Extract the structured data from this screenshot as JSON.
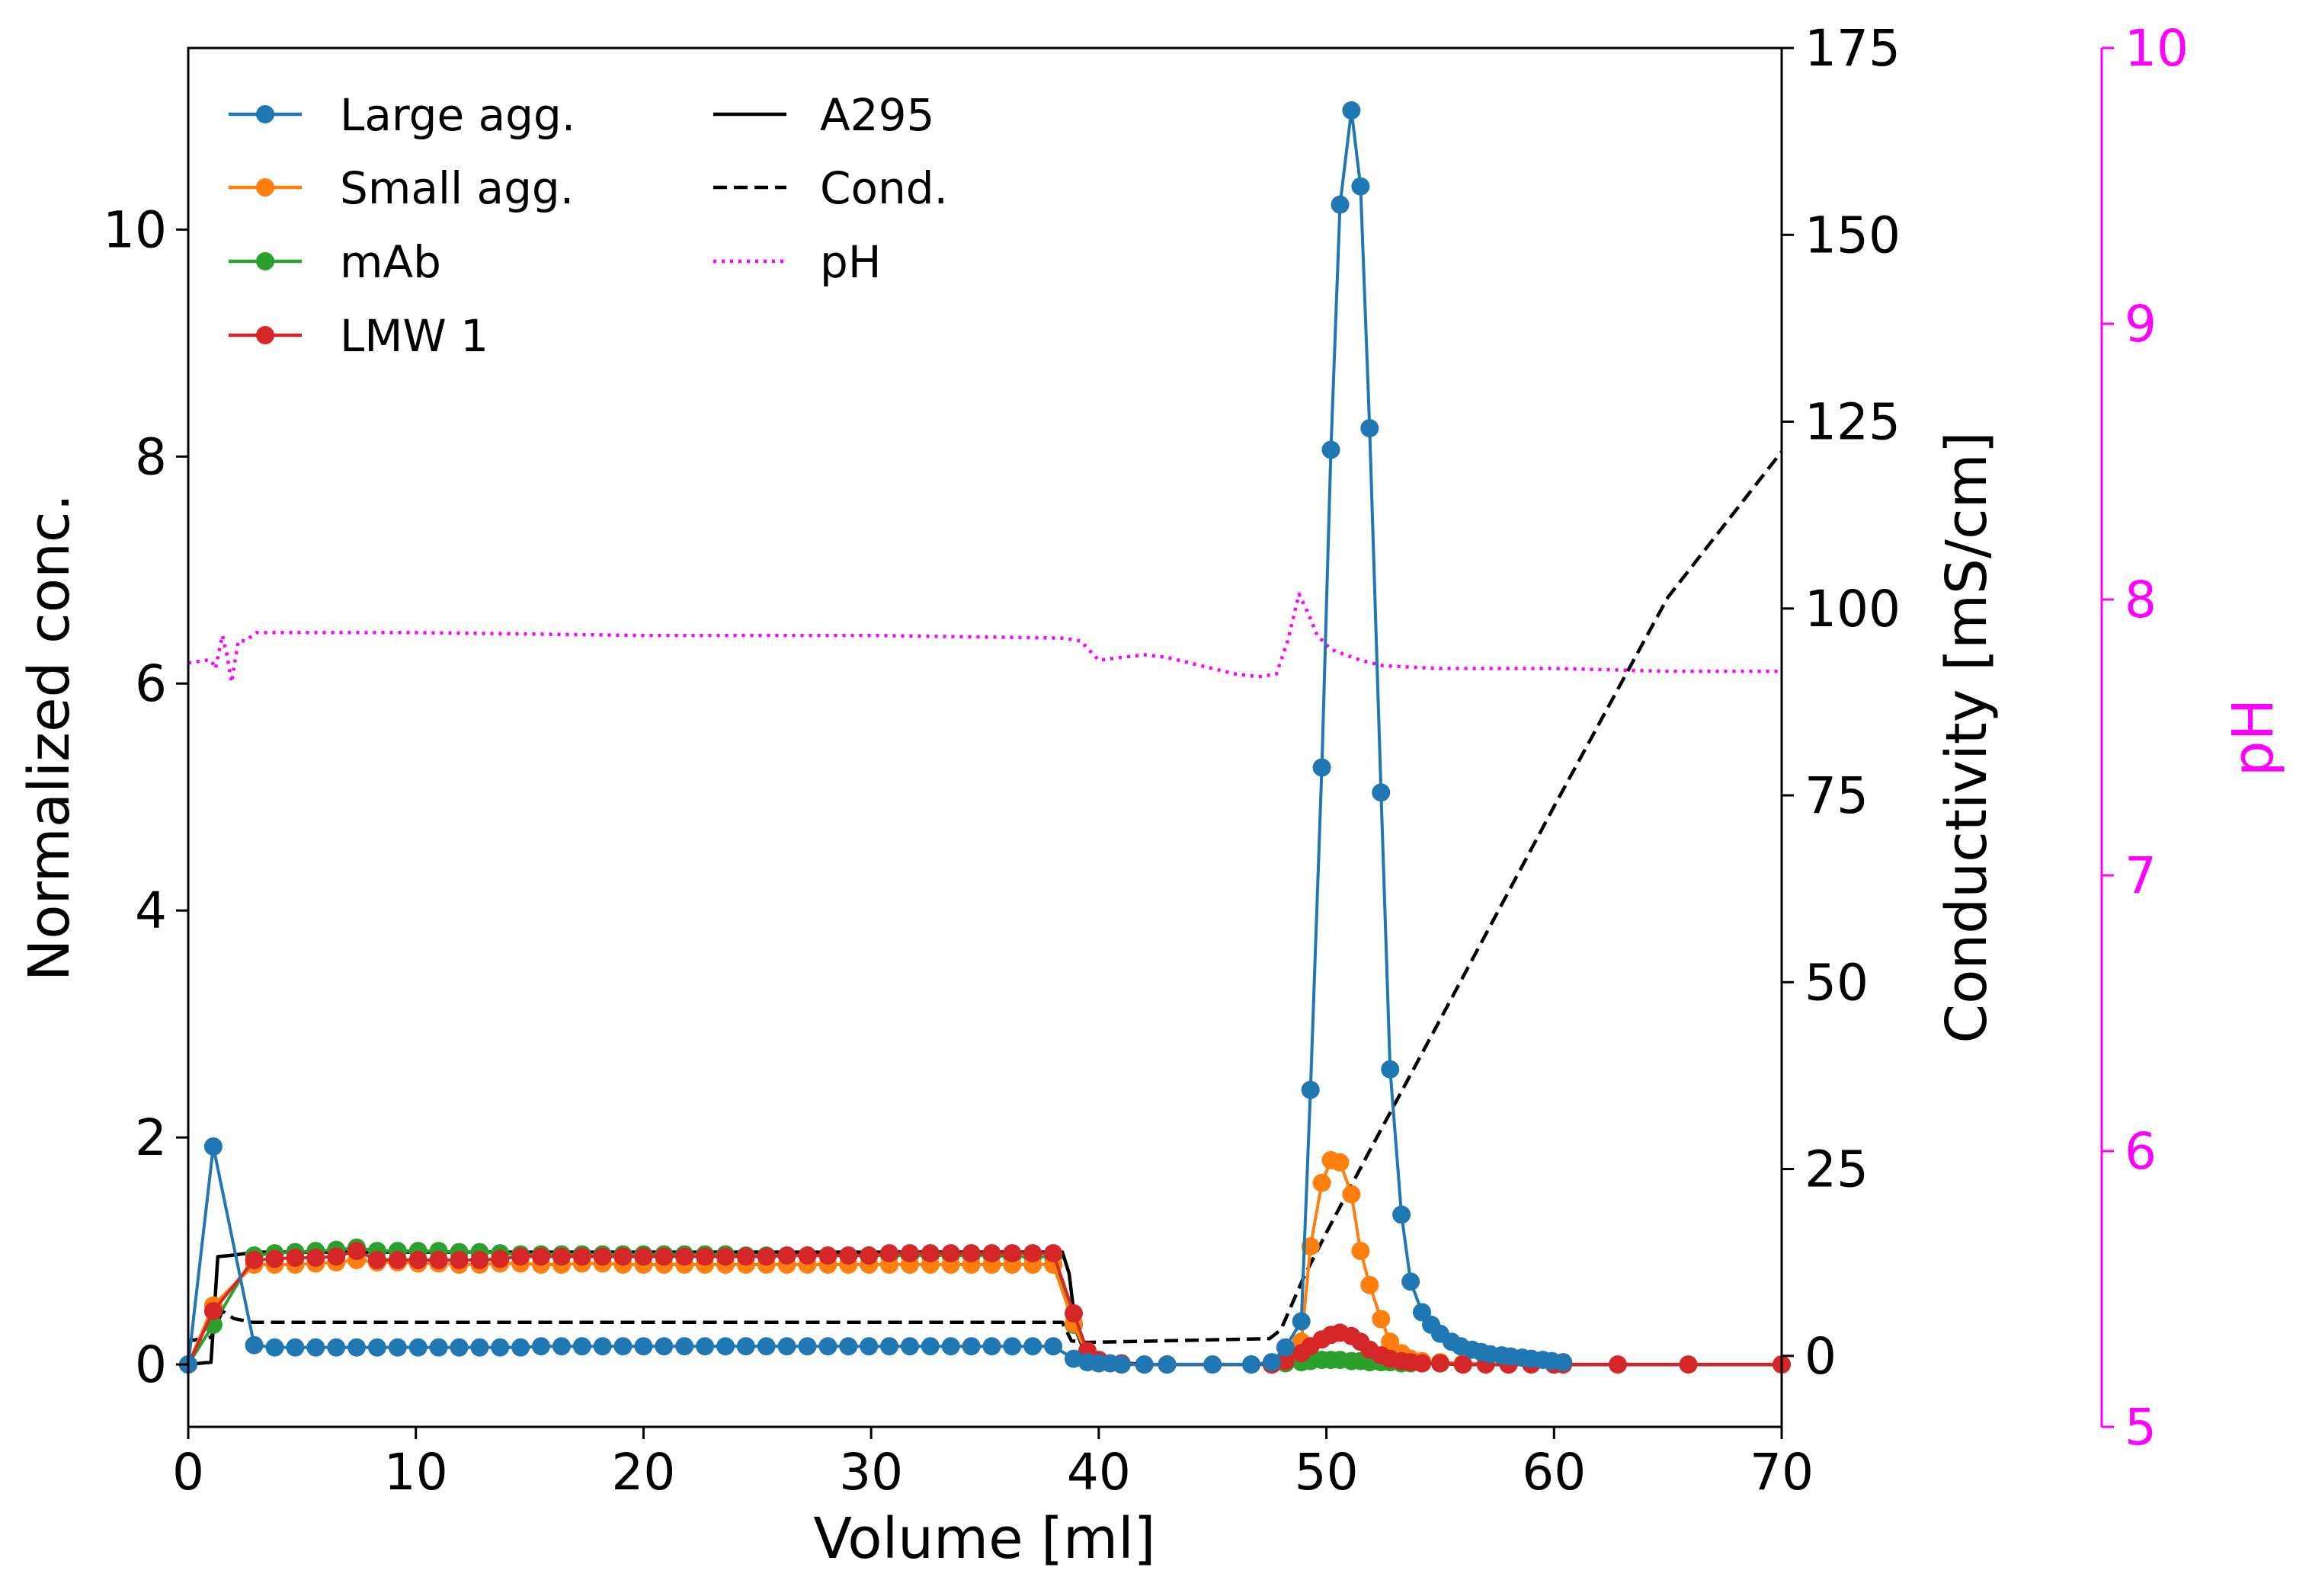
{
  "chart_data": {
    "type": "line",
    "title": "",
    "xlabel": "Volume [ml]",
    "ylabel": "Normalized conc.",
    "y2label": "Conductivity [mS/cm]",
    "y3label": "pH",
    "xlim": [
      0,
      70
    ],
    "ylim": [
      -0.55,
      11.6
    ],
    "y2lim": [
      -9.5,
      175
    ],
    "y3lim": [
      5,
      10
    ],
    "x_ticks": [
      0,
      10,
      20,
      30,
      40,
      50,
      60,
      70
    ],
    "y_ticks": [
      0,
      2,
      4,
      6,
      8,
      10
    ],
    "y2_ticks": [
      0,
      25,
      50,
      75,
      100,
      125,
      150,
      175
    ],
    "y3_ticks": [
      5,
      6,
      7,
      8,
      9,
      10
    ],
    "grid": false,
    "legend_placement": "top-left",
    "colors": {
      "large_agg": "#1f77b4",
      "small_agg": "#ff7f0e",
      "mab": "#2ca02c",
      "lmw1": "#d62728",
      "a295": "#000000",
      "cond": "#000000",
      "ph": "#ff00ff"
    },
    "series": [
      {
        "name": "Large agg.",
        "axis": "left",
        "style": "marker-line",
        "color": "#1f77b4",
        "x": [
          0,
          1.1,
          2.9,
          3.8,
          4.7,
          5.6,
          6.5,
          7.4,
          8.3,
          9.2,
          10.1,
          11.0,
          11.9,
          12.8,
          13.7,
          14.6,
          15.5,
          16.4,
          17.3,
          18.2,
          19.1,
          20.0,
          20.9,
          21.8,
          22.7,
          23.6,
          24.5,
          25.4,
          26.3,
          27.2,
          28.1,
          29.0,
          29.9,
          30.8,
          31.7,
          32.6,
          33.5,
          34.4,
          35.3,
          36.2,
          37.1,
          38.0,
          38.9,
          39.5,
          40.0,
          40.5,
          41.0,
          42.0,
          43.0,
          45.0,
          46.7,
          47.6,
          48.2,
          48.9,
          49.3,
          49.8,
          50.2,
          50.6,
          51.1,
          51.5,
          51.9,
          52.4,
          52.8,
          53.3,
          53.7,
          54.2,
          54.6,
          55.0,
          55.5,
          55.9,
          56.4,
          56.8,
          57.2,
          57.7,
          58.1,
          58.6,
          59.0,
          59.5,
          59.9,
          60.4
        ],
        "y": [
          0.0,
          1.92,
          0.17,
          0.15,
          0.15,
          0.15,
          0.15,
          0.15,
          0.15,
          0.15,
          0.15,
          0.15,
          0.15,
          0.15,
          0.15,
          0.15,
          0.16,
          0.16,
          0.16,
          0.16,
          0.16,
          0.16,
          0.16,
          0.16,
          0.16,
          0.16,
          0.16,
          0.16,
          0.16,
          0.16,
          0.16,
          0.16,
          0.16,
          0.16,
          0.16,
          0.16,
          0.16,
          0.16,
          0.16,
          0.16,
          0.16,
          0.16,
          0.05,
          0.02,
          0.01,
          0.01,
          0.0,
          0.0,
          0.0,
          0.0,
          0.0,
          0.02,
          0.15,
          0.38,
          2.42,
          5.26,
          8.06,
          10.22,
          11.05,
          10.38,
          8.25,
          5.04,
          2.6,
          1.32,
          0.73,
          0.46,
          0.35,
          0.27,
          0.2,
          0.16,
          0.13,
          0.11,
          0.09,
          0.08,
          0.07,
          0.06,
          0.05,
          0.04,
          0.03,
          0.02
        ]
      },
      {
        "name": "Small agg.",
        "axis": "left",
        "style": "marker-line",
        "color": "#ff7f0e",
        "x": [
          0,
          1.1,
          2.9,
          3.8,
          4.7,
          5.6,
          6.5,
          7.4,
          8.3,
          9.2,
          10.1,
          11.0,
          11.9,
          12.8,
          13.7,
          14.6,
          15.5,
          16.4,
          17.3,
          18.2,
          19.1,
          20.0,
          20.9,
          21.8,
          22.7,
          23.6,
          24.5,
          25.4,
          26.3,
          27.2,
          28.1,
          29.0,
          29.9,
          30.8,
          31.7,
          32.6,
          33.5,
          34.4,
          35.3,
          36.2,
          37.1,
          38.0,
          38.9,
          39.5,
          40.0,
          41.0,
          43.0,
          47.6,
          48.2,
          48.9,
          49.3,
          49.8,
          50.2,
          50.6,
          51.1,
          51.5,
          51.9,
          52.4,
          52.8,
          53.3,
          53.7,
          54.2,
          55.0,
          56.0,
          58.0,
          60.0
        ],
        "y": [
          0.0,
          0.52,
          0.88,
          0.88,
          0.88,
          0.89,
          0.9,
          0.92,
          0.9,
          0.9,
          0.89,
          0.89,
          0.88,
          0.88,
          0.89,
          0.89,
          0.88,
          0.88,
          0.89,
          0.89,
          0.88,
          0.88,
          0.88,
          0.88,
          0.88,
          0.88,
          0.88,
          0.88,
          0.88,
          0.88,
          0.88,
          0.88,
          0.88,
          0.88,
          0.88,
          0.88,
          0.88,
          0.88,
          0.88,
          0.88,
          0.88,
          0.88,
          0.36,
          0.08,
          0.02,
          0.0,
          0.0,
          0.0,
          0.03,
          0.2,
          1.04,
          1.6,
          1.8,
          1.78,
          1.5,
          1.0,
          0.7,
          0.4,
          0.2,
          0.1,
          0.05,
          0.03,
          0.02,
          0.01,
          0.0,
          0.0
        ]
      },
      {
        "name": "mAb",
        "axis": "left",
        "style": "marker-line",
        "color": "#2ca02c",
        "x": [
          0,
          1.1,
          2.9,
          3.8,
          4.7,
          5.6,
          6.5,
          7.4,
          8.3,
          9.2,
          10.1,
          11.0,
          11.9,
          12.8,
          13.7,
          14.6,
          15.5,
          16.4,
          17.3,
          18.2,
          19.1,
          20.0,
          20.9,
          21.8,
          22.7,
          23.6,
          24.5,
          25.4,
          26.3,
          27.2,
          28.1,
          29.0,
          29.9,
          30.8,
          31.7,
          32.6,
          33.5,
          34.4,
          35.3,
          36.2,
          37.1,
          38.0,
          38.9,
          39.5,
          40.0,
          41.0,
          43.0,
          47.6,
          48.2,
          48.9,
          49.3,
          49.8,
          50.2,
          50.6,
          51.1,
          51.5,
          51.9,
          52.4,
          52.8,
          53.3,
          53.7,
          54.2,
          55.0,
          56.0,
          58.0,
          60.0
        ],
        "y": [
          0.0,
          0.35,
          0.96,
          0.98,
          0.99,
          1.0,
          1.01,
          1.03,
          1.0,
          1.0,
          1.0,
          1.0,
          0.99,
          0.99,
          0.98,
          0.97,
          0.97,
          0.97,
          0.97,
          0.97,
          0.97,
          0.97,
          0.97,
          0.97,
          0.97,
          0.97,
          0.96,
          0.96,
          0.96,
          0.96,
          0.96,
          0.96,
          0.96,
          0.96,
          0.96,
          0.96,
          0.96,
          0.96,
          0.96,
          0.95,
          0.95,
          0.95,
          0.35,
          0.08,
          0.02,
          0.0,
          0.0,
          0.0,
          0.01,
          0.02,
          0.03,
          0.04,
          0.04,
          0.04,
          0.03,
          0.03,
          0.02,
          0.02,
          0.02,
          0.01,
          0.01,
          0.01,
          0.01,
          0.0,
          0.0,
          0.0
        ]
      },
      {
        "name": "LMW 1",
        "axis": "left",
        "style": "marker-line",
        "color": "#d62728",
        "x": [
          0,
          1.1,
          2.9,
          3.8,
          4.7,
          5.6,
          6.5,
          7.4,
          8.3,
          9.2,
          10.1,
          11.0,
          11.9,
          12.8,
          13.7,
          14.6,
          15.5,
          16.4,
          17.3,
          18.2,
          19.1,
          20.0,
          20.9,
          21.8,
          22.7,
          23.6,
          24.5,
          25.4,
          26.3,
          27.2,
          28.1,
          29.0,
          29.9,
          30.8,
          31.7,
          32.6,
          33.5,
          34.4,
          35.3,
          36.2,
          37.1,
          38.0,
          38.9,
          39.5,
          40.0,
          41.0,
          42.0,
          43.0,
          45.0,
          46.7,
          47.6,
          48.2,
          48.9,
          49.3,
          49.8,
          50.2,
          50.6,
          51.1,
          51.5,
          51.9,
          52.4,
          52.8,
          53.3,
          53.7,
          54.2,
          55.0,
          56.0,
          57.0,
          58.0,
          59.0,
          60.0,
          60.4,
          62.8,
          65.9,
          70.0
        ],
        "y": [
          0.0,
          0.47,
          0.92,
          0.93,
          0.94,
          0.94,
          0.95,
          1.0,
          0.92,
          0.92,
          0.92,
          0.92,
          0.92,
          0.92,
          0.93,
          0.95,
          0.95,
          0.95,
          0.95,
          0.95,
          0.95,
          0.95,
          0.95,
          0.95,
          0.95,
          0.95,
          0.95,
          0.95,
          0.96,
          0.96,
          0.96,
          0.96,
          0.96,
          0.98,
          0.98,
          0.98,
          0.98,
          0.98,
          0.98,
          0.98,
          0.98,
          0.98,
          0.45,
          0.12,
          0.04,
          0.01,
          0.0,
          0.0,
          0.0,
          0.0,
          0.0,
          0.03,
          0.1,
          0.16,
          0.22,
          0.26,
          0.28,
          0.25,
          0.2,
          0.13,
          0.08,
          0.05,
          0.03,
          0.02,
          0.01,
          0.01,
          0.0,
          0.0,
          0.0,
          0.0,
          0.0,
          0.0,
          0.0,
          0.0,
          0.0
        ]
      },
      {
        "name": "A295",
        "axis": "left",
        "style": "solid",
        "color": "#000000",
        "x": [
          0,
          1.0,
          1.3,
          1.8,
          2.6,
          3.0,
          10,
          20,
          30,
          38.0,
          38.4,
          38.7,
          39.0,
          39.4,
          40.0,
          42,
          47.0,
          48.0,
          48.8,
          49.5,
          50.2,
          50.8,
          51.3,
          52.0,
          52.6,
          53.4,
          54.5,
          56,
          60,
          70
        ],
        "y": [
          0.0,
          0.02,
          0.95,
          0.96,
          0.98,
          0.99,
          0.99,
          0.99,
          0.99,
          0.99,
          0.99,
          0.8,
          0.3,
          0.1,
          0.03,
          0.0,
          0.0,
          0.02,
          0.08,
          0.16,
          0.22,
          0.24,
          0.22,
          0.15,
          0.08,
          0.03,
          0.01,
          0.0,
          0.0,
          0.0
        ]
      },
      {
        "name": "Cond.",
        "axis": "right",
        "style": "dashed",
        "color": "#000000",
        "x": [
          0,
          1.0,
          1.5,
          2.0,
          2.8,
          10,
          20,
          30,
          38.4,
          38.8,
          39.5,
          47.5,
          48.0,
          49.0,
          50.0,
          52.0,
          55.0,
          60.0,
          65.0,
          70.0
        ],
        "y": [
          2.0,
          2.5,
          6.0,
          5.0,
          4.5,
          4.5,
          4.5,
          4.5,
          4.5,
          2.0,
          1.8,
          2.3,
          3.5,
          10.5,
          16.5,
          28.0,
          45.0,
          73.5,
          101.5,
          121.0
        ]
      },
      {
        "name": "pH",
        "axis": "ph",
        "style": "dotted",
        "color": "#ff00ff",
        "x": [
          0,
          0.8,
          1.0,
          1.2,
          1.5,
          1.7,
          1.9,
          2.2,
          2.5,
          3,
          5,
          10,
          20,
          30,
          38.5,
          39.2,
          40.0,
          41.0,
          42.0,
          43.0,
          45.0,
          46.0,
          47.0,
          47.8,
          48.3,
          48.8,
          49.2,
          49.6,
          50.2,
          50.8,
          51.5,
          52.5,
          55,
          60,
          65,
          70
        ],
        "y": [
          7.77,
          7.78,
          7.78,
          7.75,
          7.87,
          7.8,
          7.7,
          7.85,
          7.85,
          7.88,
          7.88,
          7.88,
          7.87,
          7.87,
          7.86,
          7.85,
          7.78,
          7.79,
          7.8,
          7.79,
          7.75,
          7.73,
          7.72,
          7.73,
          7.85,
          8.02,
          7.95,
          7.87,
          7.82,
          7.8,
          7.78,
          7.76,
          7.75,
          7.75,
          7.74,
          7.74
        ]
      }
    ]
  }
}
